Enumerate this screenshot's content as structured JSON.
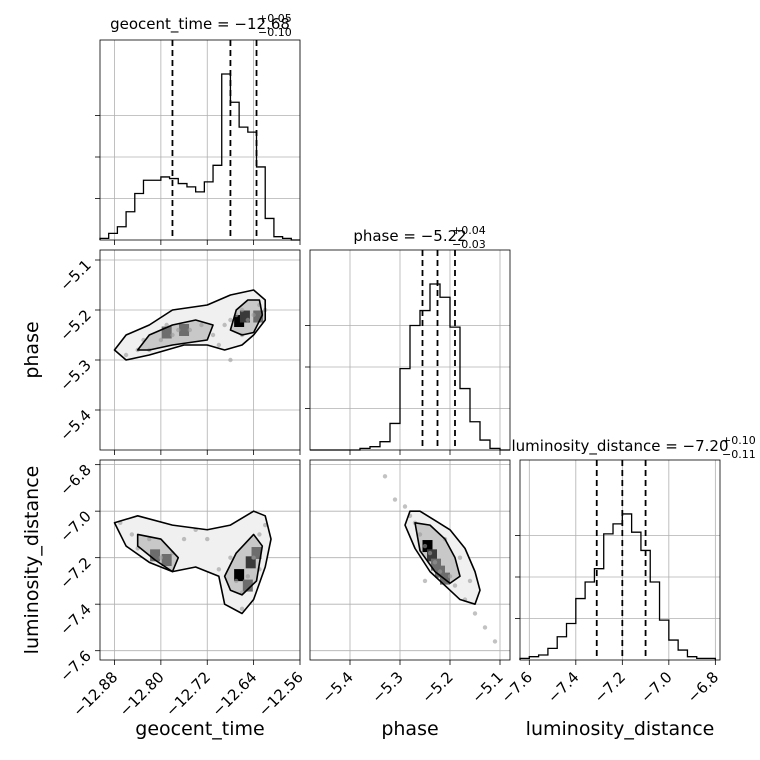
{
  "chart_data": {
    "type": "corner",
    "grid": true,
    "parameters": [
      {
        "name": "geocent_time",
        "axis_label": "geocent_time",
        "median_label": "−12.68",
        "plus_label": "+0.05",
        "minus_label": "−0.10",
        "range": [
          -12.905,
          -12.56
        ],
        "ticks": [
          -12.88,
          -12.8,
          -12.72,
          -12.64,
          -12.56
        ],
        "tick_labels": [
          "−12.88",
          "−12.80",
          "−12.72",
          "−12.64",
          "−12.56"
        ],
        "quantiles": [
          -12.78,
          -12.68,
          -12.635
        ],
        "hist_edges": [
          -12.905,
          -12.89,
          -12.875,
          -12.86,
          -12.845,
          -12.83,
          -12.815,
          -12.8,
          -12.785,
          -12.77,
          -12.755,
          -12.74,
          -12.725,
          -12.71,
          -12.695,
          -12.68,
          -12.665,
          -12.65,
          -12.635,
          -12.62,
          -12.605,
          -12.59,
          -12.575,
          -12.56
        ],
        "hist_counts": [
          0.01,
          0.04,
          0.08,
          0.17,
          0.28,
          0.36,
          0.36,
          0.38,
          0.37,
          0.34,
          0.32,
          0.29,
          0.35,
          0.45,
          1.0,
          0.83,
          0.68,
          0.65,
          0.44,
          0.13,
          0.02,
          0.01,
          0.0
        ]
      },
      {
        "name": "phase",
        "axis_label": "phase",
        "median_label": "−5.22",
        "plus_label": "+0.04",
        "minus_label": "−0.03",
        "range": [
          -5.48,
          -5.08
        ],
        "ticks": [
          -5.4,
          -5.3,
          -5.2,
          -5.1
        ],
        "tick_labels": [
          "−5.4",
          "−5.3",
          "−5.2",
          "−5.1"
        ],
        "quantiles": [
          -5.255,
          -5.225,
          -5.19
        ],
        "hist_edges": [
          -5.48,
          -5.46,
          -5.44,
          -5.42,
          -5.4,
          -5.38,
          -5.36,
          -5.34,
          -5.32,
          -5.3,
          -5.28,
          -5.26,
          -5.24,
          -5.22,
          -5.2,
          -5.18,
          -5.16,
          -5.14,
          -5.12,
          -5.1,
          -5.08
        ],
        "hist_counts": [
          0.0,
          0.0,
          0.0,
          0.0,
          0.0,
          0.01,
          0.02,
          0.05,
          0.16,
          0.49,
          0.75,
          0.84,
          1.0,
          0.92,
          0.74,
          0.37,
          0.17,
          0.06,
          0.01,
          0.0
        ]
      },
      {
        "name": "luminosity_distance",
        "axis_label": "luminosity_distance",
        "median_label": "−7.20",
        "plus_label": "+0.10",
        "minus_label": "−0.11",
        "range": [
          -7.64,
          -6.78
        ],
        "ticks": [
          -7.6,
          -7.4,
          -7.2,
          -7.0,
          -6.8
        ],
        "tick_labels": [
          "−7.6",
          "−7.4",
          "−7.2",
          "−7.0",
          "−6.8"
        ],
        "quantiles": [
          -7.31,
          -7.2,
          -7.1
        ],
        "hist_edges": [
          -7.64,
          -7.6,
          -7.56,
          -7.52,
          -7.48,
          -7.44,
          -7.4,
          -7.36,
          -7.32,
          -7.28,
          -7.24,
          -7.2,
          -7.16,
          -7.12,
          -7.08,
          -7.04,
          -7.0,
          -6.96,
          -6.92,
          -6.88,
          -6.84,
          -6.8
        ],
        "hist_counts": [
          0.01,
          0.02,
          0.03,
          0.07,
          0.14,
          0.22,
          0.37,
          0.47,
          0.55,
          0.76,
          0.82,
          0.88,
          0.77,
          0.66,
          0.47,
          0.24,
          0.12,
          0.06,
          0.02,
          0.01,
          0.01
        ]
      }
    ],
    "pairs": [
      {
        "x_param": "geocent_time",
        "y_param": "phase",
        "points": [
          [
            -12.86,
            -5.29
          ],
          [
            -12.84,
            -5.28
          ],
          [
            -12.82,
            -5.28
          ],
          [
            -12.8,
            -5.26
          ],
          [
            -12.78,
            -5.25
          ],
          [
            -12.77,
            -5.24
          ],
          [
            -12.75,
            -5.24
          ],
          [
            -12.73,
            -5.23
          ],
          [
            -12.71,
            -5.25
          ],
          [
            -12.7,
            -5.27
          ],
          [
            -12.69,
            -5.23
          ],
          [
            -12.68,
            -5.22
          ],
          [
            -12.67,
            -5.21
          ],
          [
            -12.66,
            -5.2
          ],
          [
            -12.65,
            -5.22
          ],
          [
            -12.64,
            -5.21
          ],
          [
            -12.63,
            -5.19
          ],
          [
            -12.62,
            -5.2
          ],
          [
            -12.66,
            -5.25
          ],
          [
            -12.68,
            -5.3
          ],
          [
            -12.79,
            -5.23
          ],
          [
            -12.83,
            -5.26
          ]
        ],
        "density_peaks": [
          [
            -12.665,
            -5.222
          ],
          [
            -12.655,
            -5.213
          ],
          [
            -12.632,
            -5.213
          ],
          [
            -12.76,
            -5.24
          ],
          [
            -12.79,
            -5.245
          ]
        ],
        "contours": [
          [
            [
              -12.88,
              -5.28
            ],
            [
              -12.86,
              -5.25
            ],
            [
              -12.82,
              -5.23
            ],
            [
              -12.78,
              -5.2
            ],
            [
              -12.72,
              -5.19
            ],
            [
              -12.68,
              -5.17
            ],
            [
              -12.64,
              -5.16
            ],
            [
              -12.62,
              -5.18
            ],
            [
              -12.62,
              -5.22
            ],
            [
              -12.64,
              -5.25
            ],
            [
              -12.66,
              -5.27
            ],
            [
              -12.69,
              -5.28
            ],
            [
              -12.72,
              -5.27
            ],
            [
              -12.76,
              -5.27
            ],
            [
              -12.82,
              -5.29
            ],
            [
              -12.86,
              -5.3
            ]
          ],
          [
            [
              -12.84,
              -5.28
            ],
            [
              -12.82,
              -5.25
            ],
            [
              -12.78,
              -5.23
            ],
            [
              -12.74,
              -5.22
            ],
            [
              -12.71,
              -5.23
            ],
            [
              -12.72,
              -5.26
            ],
            [
              -12.78,
              -5.27
            ],
            [
              -12.82,
              -5.28
            ]
          ],
          [
            [
              -12.68,
              -5.24
            ],
            [
              -12.67,
              -5.2
            ],
            [
              -12.65,
              -5.18
            ],
            [
              -12.63,
              -5.18
            ],
            [
              -12.625,
              -5.21
            ],
            [
              -12.64,
              -5.245
            ],
            [
              -12.66,
              -5.25
            ]
          ]
        ]
      },
      {
        "x_param": "geocent_time",
        "y_param": "luminosity_distance",
        "points": [
          [
            -12.87,
            -7.05
          ],
          [
            -12.85,
            -7.1
          ],
          [
            -12.82,
            -7.12
          ],
          [
            -12.8,
            -7.2
          ],
          [
            -12.78,
            -7.18
          ],
          [
            -12.76,
            -7.12
          ],
          [
            -12.72,
            -7.12
          ],
          [
            -12.68,
            -7.2
          ],
          [
            -12.67,
            -7.3
          ],
          [
            -12.66,
            -7.35
          ],
          [
            -12.65,
            -7.28
          ],
          [
            -12.64,
            -7.2
          ],
          [
            -12.63,
            -7.1
          ],
          [
            -12.62,
            -7.06
          ],
          [
            -12.66,
            -7.42
          ],
          [
            -12.7,
            -7.25
          ],
          [
            -12.84,
            -7.16
          ],
          [
            -12.74,
            -7.08
          ],
          [
            -12.63,
            -7.25
          ]
        ],
        "density_peaks": [
          [
            -12.665,
            -7.275
          ],
          [
            -12.645,
            -7.22
          ],
          [
            -12.635,
            -7.18
          ],
          [
            -12.65,
            -7.32
          ],
          [
            -12.79,
            -7.21
          ],
          [
            -12.81,
            -7.19
          ]
        ],
        "contours": [
          [
            [
              -12.88,
              -7.05
            ],
            [
              -12.84,
              -7.02
            ],
            [
              -12.78,
              -7.06
            ],
            [
              -12.72,
              -7.08
            ],
            [
              -12.68,
              -7.06
            ],
            [
              -12.64,
              -7.0
            ],
            [
              -12.62,
              -7.02
            ],
            [
              -12.61,
              -7.12
            ],
            [
              -12.62,
              -7.24
            ],
            [
              -12.64,
              -7.38
            ],
            [
              -12.66,
              -7.44
            ],
            [
              -12.69,
              -7.4
            ],
            [
              -12.7,
              -7.28
            ],
            [
              -12.74,
              -7.24
            ],
            [
              -12.78,
              -7.26
            ],
            [
              -12.82,
              -7.22
            ],
            [
              -12.86,
              -7.15
            ]
          ],
          [
            [
              -12.84,
              -7.1
            ],
            [
              -12.8,
              -7.12
            ],
            [
              -12.77,
              -7.2
            ],
            [
              -12.78,
              -7.26
            ],
            [
              -12.81,
              -7.21
            ],
            [
              -12.84,
              -7.15
            ]
          ],
          [
            [
              -12.69,
              -7.28
            ],
            [
              -12.67,
              -7.18
            ],
            [
              -12.64,
              -7.1
            ],
            [
              -12.625,
              -7.15
            ],
            [
              -12.635,
              -7.3
            ],
            [
              -12.66,
              -7.36
            ],
            [
              -12.68,
              -7.34
            ]
          ]
        ]
      },
      {
        "x_param": "phase",
        "y_param": "luminosity_distance",
        "points": [
          [
            -5.33,
            -6.85
          ],
          [
            -5.31,
            -6.95
          ],
          [
            -5.29,
            -6.98
          ],
          [
            -5.28,
            -7.02
          ],
          [
            -5.26,
            -7.1
          ],
          [
            -5.25,
            -7.15
          ],
          [
            -5.24,
            -7.18
          ],
          [
            -5.23,
            -7.22
          ],
          [
            -5.22,
            -7.26
          ],
          [
            -5.2,
            -7.28
          ],
          [
            -5.19,
            -7.32
          ],
          [
            -5.17,
            -7.38
          ],
          [
            -5.15,
            -7.44
          ],
          [
            -5.13,
            -7.5
          ],
          [
            -5.11,
            -7.56
          ],
          [
            -5.27,
            -7.05
          ],
          [
            -5.21,
            -7.12
          ],
          [
            -5.18,
            -7.2
          ],
          [
            -5.25,
            -7.3
          ],
          [
            -5.16,
            -7.3
          ]
        ],
        "density_peaks": [
          [
            -5.245,
            -7.15
          ],
          [
            -5.236,
            -7.19
          ],
          [
            -5.228,
            -7.23
          ],
          [
            -5.22,
            -7.26
          ],
          [
            -5.21,
            -7.29
          ]
        ],
        "contours": [
          [
            [
              -5.28,
              -7.0
            ],
            [
              -5.26,
              -7.0
            ],
            [
              -5.23,
              -7.04
            ],
            [
              -5.2,
              -7.08
            ],
            [
              -5.17,
              -7.16
            ],
            [
              -5.15,
              -7.26
            ],
            [
              -5.14,
              -7.34
            ],
            [
              -5.15,
              -7.4
            ],
            [
              -5.18,
              -7.38
            ],
            [
              -5.21,
              -7.32
            ],
            [
              -5.24,
              -7.26
            ],
            [
              -5.27,
              -7.16
            ],
            [
              -5.29,
              -7.06
            ]
          ],
          [
            [
              -5.27,
              -7.05
            ],
            [
              -5.24,
              -7.06
            ],
            [
              -5.21,
              -7.12
            ],
            [
              -5.19,
              -7.2
            ],
            [
              -5.18,
              -7.28
            ],
            [
              -5.2,
              -7.31
            ],
            [
              -5.23,
              -7.26
            ],
            [
              -5.26,
              -7.17
            ]
          ]
        ]
      }
    ]
  }
}
